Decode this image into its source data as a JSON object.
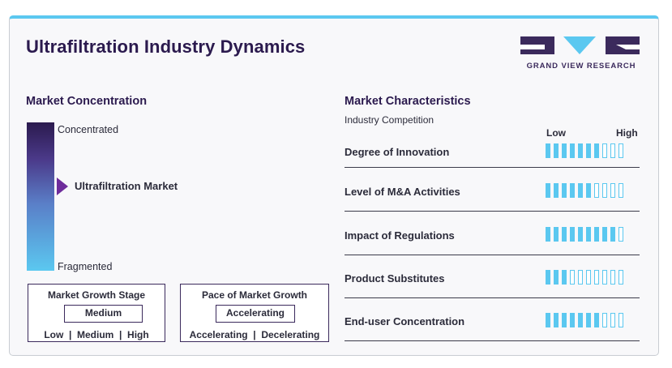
{
  "title": "Ultrafiltration Industry Dynamics",
  "logo": {
    "text": "GRAND VIEW RESEARCH"
  },
  "colors": {
    "dark": "#2b1a4e",
    "accent": "#5bc8f0",
    "marker": "#6e2c9b"
  },
  "concentration": {
    "heading": "Market Concentration",
    "top_label": "Concentrated",
    "bottom_label": "Fragmented",
    "marker_label": "Ultrafiltration Market"
  },
  "growth_stage": {
    "title": "Market Growth Stage",
    "value": "Medium",
    "scale": "Low  |  Medium  |  High"
  },
  "growth_pace": {
    "title": "Pace of Market Growth",
    "value": "Accelerating",
    "scale": "Accelerating  |  Decelerating"
  },
  "characteristics": {
    "heading": "Market Characteristics",
    "subheading": "Industry Competition",
    "low": "Low",
    "high": "High",
    "max_level": 10,
    "rows": [
      {
        "label": "Degree of Innovation",
        "level": 7
      },
      {
        "label": "Level of M&A Activities",
        "level": 6
      },
      {
        "label": "Impact of Regulations",
        "level": 9
      },
      {
        "label": "Product Substitutes",
        "level": 3
      },
      {
        "label": "End-user Concentration",
        "level": 7
      }
    ]
  }
}
